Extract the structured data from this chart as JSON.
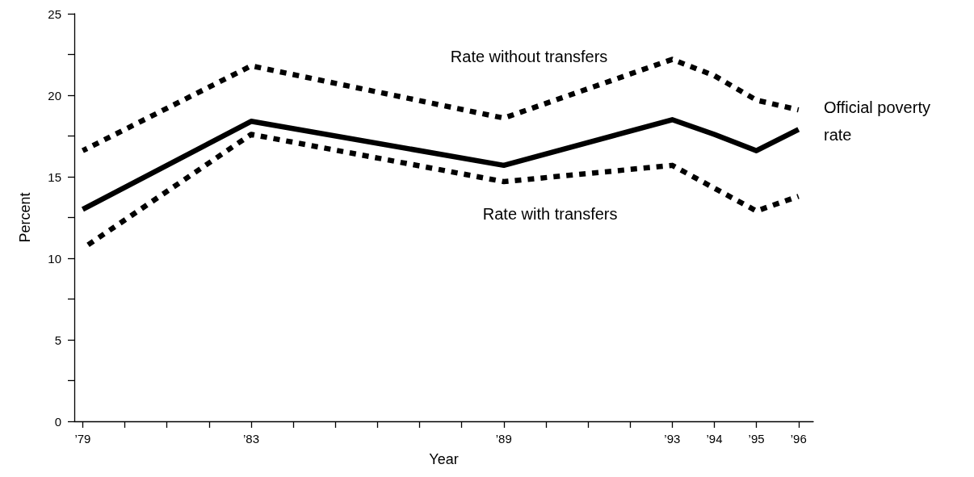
{
  "chart_data": {
    "type": "line",
    "xlabel": "Year",
    "ylabel": "Percent",
    "x": [
      1979,
      1983,
      1989,
      1993,
      1994,
      1995,
      1996
    ],
    "series": [
      {
        "name": "Rate without transfers",
        "color": "#000000",
        "line_style": "dotted",
        "values": [
          16.6,
          21.8,
          18.6,
          22.2,
          21.2,
          19.7,
          19.1
        ]
      },
      {
        "name": "Official poverty rate",
        "color": "#000000",
        "line_style": "solid",
        "values": [
          13.0,
          18.4,
          15.7,
          18.5,
          17.6,
          16.6,
          17.9
        ]
      },
      {
        "name": "Rate with transfers",
        "color": "#000000",
        "line_style": "dotted",
        "values": [
          10.6,
          17.6,
          14.7,
          15.7,
          14.3,
          12.9,
          13.8
        ]
      }
    ],
    "xlim": [
      1978.8,
      1996.35
    ],
    "xticks": [
      {
        "value": 1979,
        "label": "’79"
      },
      {
        "value": 1980,
        "label": null
      },
      {
        "value": 1981,
        "label": null
      },
      {
        "value": 1982,
        "label": null
      },
      {
        "value": 1983,
        "label": "’83"
      },
      {
        "value": 1984,
        "label": null
      },
      {
        "value": 1985,
        "label": null
      },
      {
        "value": 1986,
        "label": null
      },
      {
        "value": 1987,
        "label": null
      },
      {
        "value": 1988,
        "label": null
      },
      {
        "value": 1989,
        "label": "’89"
      },
      {
        "value": 1990,
        "label": null
      },
      {
        "value": 1991,
        "label": null
      },
      {
        "value": 1992,
        "label": null
      },
      {
        "value": 1993,
        "label": "’93"
      },
      {
        "value": 1994,
        "label": "’94"
      },
      {
        "value": 1995,
        "label": "’95"
      },
      {
        "value": 1996,
        "label": "’96"
      }
    ],
    "ylim": [
      0,
      25
    ],
    "yticks": [
      0,
      {
        "value": 2.5,
        "label": null
      },
      5,
      {
        "value": 7.5,
        "label": null
      },
      10,
      {
        "value": 12.5,
        "label": null
      },
      15,
      {
        "value": 17.5,
        "label": null
      },
      20,
      {
        "value": 22.5,
        "label": null
      },
      25
    ],
    "grid": false,
    "legend": false,
    "marker": "none"
  }
}
